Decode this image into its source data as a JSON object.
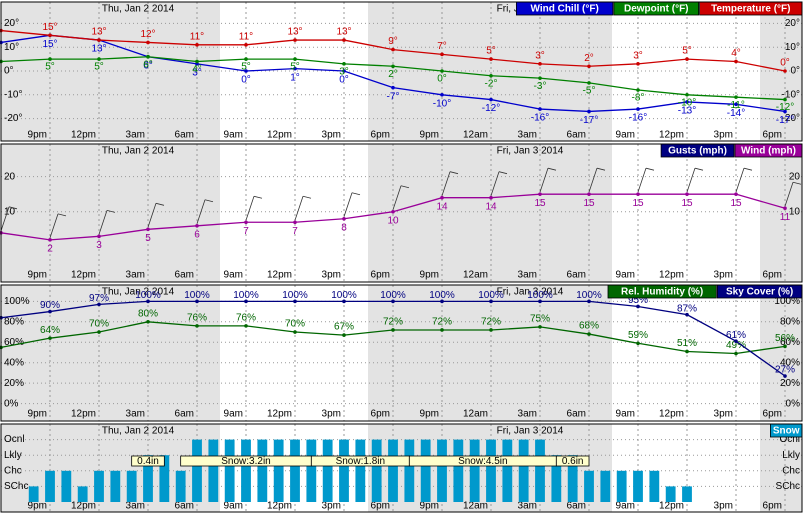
{
  "chart_data": [
    {
      "type": "line",
      "xlim": [
        0,
        48
      ],
      "xticks": [
        {
          "value": 3,
          "label": "9pm"
        },
        {
          "value": 6,
          "label": "12pm"
        },
        {
          "value": 9,
          "label": "3am"
        },
        {
          "value": 12,
          "label": "6am"
        },
        {
          "value": 15,
          "label": "9am"
        },
        {
          "value": 18,
          "label": "12pm"
        },
        {
          "value": 21,
          "label": "3pm"
        },
        {
          "value": 24,
          "label": "6pm"
        },
        {
          "value": 27,
          "label": "9pm"
        },
        {
          "value": 30,
          "label": "12am"
        },
        {
          "value": 33,
          "label": "3am"
        },
        {
          "value": 36,
          "label": "6am"
        },
        {
          "value": 39,
          "label": "9am"
        },
        {
          "value": 42,
          "label": "12pm"
        },
        {
          "value": 45,
          "label": "3pm"
        },
        {
          "value": 48,
          "label": "6pm"
        }
      ],
      "dates": [
        "Thu, Jan 2 2014",
        "Fri, Jan 3 2014"
      ],
      "ylim": [
        -29,
        29
      ],
      "yticks": [
        {
          "value": 20,
          "label": "20°"
        },
        {
          "value": 10,
          "label": "10°"
        },
        {
          "value": 0,
          "label": "0°"
        },
        {
          "value": -10,
          "label": "-10°"
        },
        {
          "value": -20,
          "label": "-20°"
        }
      ],
      "grid": true,
      "x": [
        0,
        3,
        6,
        9,
        12,
        15,
        18,
        21,
        24,
        27,
        30,
        33,
        36,
        39,
        42,
        45,
        48
      ],
      "series": [
        {
          "name": "Wind Chill (°F)",
          "color": "#0000cc",
          "values": [
            12,
            15,
            13,
            6,
            3,
            0,
            1,
            0,
            -7,
            -10,
            -12,
            -16,
            -17,
            -16,
            -13,
            -14,
            -17
          ],
          "value_labels": [
            null,
            "15°",
            "13°",
            "6°",
            "3°",
            "0°",
            "1°",
            "0°",
            "-7°",
            "-10°",
            "-12°",
            "-16°",
            "-17°",
            "-16°",
            "-13°",
            "-14°",
            "-17°"
          ]
        },
        {
          "name": "Dewpoint (°F)",
          "color": "#008000",
          "values": [
            4,
            5,
            5,
            6,
            4,
            5,
            5,
            3,
            2,
            0,
            -2,
            -3,
            -5,
            -8,
            -10,
            -11,
            -12
          ],
          "value_labels": [
            null,
            "5°",
            "5°",
            "6°",
            "4°",
            "5°",
            "5°",
            "3°",
            "2°",
            "0°",
            "-2°",
            "-3°",
            "-5°",
            "-8°",
            "-10°",
            "-11°",
            "-12°"
          ]
        },
        {
          "name": "Temperature (°F)",
          "color": "#cc0000",
          "values": [
            17,
            15,
            13,
            12,
            11,
            11,
            13,
            13,
            9,
            7,
            5,
            3,
            2,
            3,
            5,
            4,
            0
          ],
          "value_labels": [
            null,
            "15°",
            "13°",
            "12°",
            "11°",
            "11°",
            "13°",
            "13°",
            "9°",
            "7°",
            "5°",
            "3°",
            "2°",
            "3°",
            "5°",
            "4°",
            "0°"
          ]
        }
      ]
    },
    {
      "type": "line",
      "xlim": [
        0,
        48
      ],
      "xticks": [
        {
          "value": 3,
          "label": "9pm"
        },
        {
          "value": 6,
          "label": "12pm"
        },
        {
          "value": 9,
          "label": "3am"
        },
        {
          "value": 12,
          "label": "6am"
        },
        {
          "value": 15,
          "label": "9am"
        },
        {
          "value": 18,
          "label": "12pm"
        },
        {
          "value": 21,
          "label": "3pm"
        },
        {
          "value": 24,
          "label": "6pm"
        },
        {
          "value": 27,
          "label": "9pm"
        },
        {
          "value": 30,
          "label": "12am"
        },
        {
          "value": 33,
          "label": "3am"
        },
        {
          "value": 36,
          "label": "6am"
        },
        {
          "value": 39,
          "label": "9am"
        },
        {
          "value": 42,
          "label": "12pm"
        },
        {
          "value": 45,
          "label": "3pm"
        },
        {
          "value": 48,
          "label": "6pm"
        }
      ],
      "dates": [
        "Thu, Jan 2 2014",
        "Fri, Jan 3 2014"
      ],
      "ylim": [
        -10,
        29
      ],
      "yticks": [
        20,
        10
      ],
      "grid": true,
      "x": [
        0,
        3,
        6,
        9,
        12,
        15,
        18,
        21,
        24,
        27,
        30,
        33,
        36,
        39,
        42,
        45,
        48
      ],
      "series": [
        {
          "name": "Gusts (mph)",
          "color": "#000080",
          "values": [
            null,
            null,
            null,
            null,
            null,
            null,
            null,
            null,
            null,
            null,
            null,
            null,
            null,
            null,
            null,
            null,
            null
          ]
        },
        {
          "name": "Wind (mph)",
          "color": "#990099",
          "values": [
            4,
            2,
            3,
            5,
            6,
            7,
            7,
            8,
            10,
            14,
            14,
            15,
            15,
            15,
            15,
            15,
            11
          ]
        }
      ]
    },
    {
      "type": "line",
      "xlim": [
        0,
        48
      ],
      "xticks": [
        {
          "value": 3,
          "label": "9pm"
        },
        {
          "value": 6,
          "label": "12pm"
        },
        {
          "value": 9,
          "label": "3am"
        },
        {
          "value": 12,
          "label": "6am"
        },
        {
          "value": 15,
          "label": "9am"
        },
        {
          "value": 18,
          "label": "12pm"
        },
        {
          "value": 21,
          "label": "3pm"
        },
        {
          "value": 24,
          "label": "6pm"
        },
        {
          "value": 27,
          "label": "9pm"
        },
        {
          "value": 30,
          "label": "12am"
        },
        {
          "value": 33,
          "label": "3am"
        },
        {
          "value": 36,
          "label": "6am"
        },
        {
          "value": 39,
          "label": "9am"
        },
        {
          "value": 42,
          "label": "12pm"
        },
        {
          "value": 45,
          "label": "3pm"
        },
        {
          "value": 48,
          "label": "6pm"
        }
      ],
      "dates": [
        "Thu, Jan 2 2014",
        "Fri, Jan 3 2014"
      ],
      "ylim": [
        -16,
        115
      ],
      "yticks": [
        {
          "value": 100,
          "label": "100%"
        },
        {
          "value": 80,
          "label": "80%"
        },
        {
          "value": 60,
          "label": "60%"
        },
        {
          "value": 40,
          "label": "40%"
        },
        {
          "value": 20,
          "label": "20%"
        },
        {
          "value": 0,
          "label": "0%"
        }
      ],
      "grid": true,
      "x": [
        0,
        3,
        6,
        9,
        12,
        15,
        18,
        21,
        24,
        27,
        30,
        33,
        36,
        39,
        42,
        45,
        48
      ],
      "series": [
        {
          "name": "Rel. Humidity (%)",
          "color": "#006600",
          "values": [
            55,
            64,
            70,
            80,
            76,
            76,
            70,
            67,
            72,
            72,
            72,
            75,
            68,
            59,
            51,
            49,
            56
          ],
          "value_labels": [
            null,
            "64%",
            "70%",
            "80%",
            "76%",
            "76%",
            "70%",
            "67%",
            "72%",
            "72%",
            "72%",
            "75%",
            "68%",
            "59%",
            "51%",
            "49%",
            "56%"
          ]
        },
        {
          "name": "Sky Cover (%)",
          "color": "#000080",
          "values": [
            84,
            90,
            97,
            100,
            100,
            100,
            100,
            100,
            100,
            100,
            100,
            100,
            100,
            95,
            87,
            61,
            27
          ],
          "value_labels": [
            null,
            "90%",
            "97%",
            "100%",
            "100%",
            "100%",
            "100%",
            "100%",
            "100%",
            "100%",
            "100%",
            "100%",
            "100%",
            "95%",
            "87%",
            "61%",
            "27%"
          ]
        }
      ]
    },
    {
      "type": "bar",
      "xlim": [
        0,
        48
      ],
      "xticks": [
        {
          "value": 3,
          "label": "9pm"
        },
        {
          "value": 6,
          "label": "12pm"
        },
        {
          "value": 9,
          "label": "3am"
        },
        {
          "value": 12,
          "label": "6am"
        },
        {
          "value": 15,
          "label": "9am"
        },
        {
          "value": 18,
          "label": "12pm"
        },
        {
          "value": 21,
          "label": "3pm"
        },
        {
          "value": 24,
          "label": "6pm"
        },
        {
          "value": 27,
          "label": "9pm"
        },
        {
          "value": 30,
          "label": "12am"
        },
        {
          "value": 33,
          "label": "3am"
        },
        {
          "value": 36,
          "label": "6am"
        },
        {
          "value": 39,
          "label": "9am"
        },
        {
          "value": 42,
          "label": "12pm"
        },
        {
          "value": 45,
          "label": "3pm"
        },
        {
          "value": 48,
          "label": "6pm"
        }
      ],
      "dates": [
        "Thu, Jan 2 2014",
        "Fri, Jan 3 2014"
      ],
      "ylim": [
        0,
        100
      ],
      "yticks": [
        {
          "value": 80,
          "label": "Ocnl"
        },
        {
          "value": 60,
          "label": "Lkly"
        },
        {
          "value": 40,
          "label": "Chc"
        },
        {
          "value": 20,
          "label": "SChc"
        }
      ],
      "grid": true,
      "x": [
        0,
        1,
        2,
        3,
        4,
        5,
        6,
        7,
        8,
        9,
        10,
        11,
        12,
        13,
        14,
        15,
        16,
        17,
        18,
        19,
        20,
        21,
        22,
        23,
        24,
        25,
        26,
        27,
        28,
        29,
        30,
        31,
        32,
        33,
        34,
        35,
        36,
        37,
        38,
        39,
        40,
        41,
        42,
        43,
        44,
        45,
        46,
        47
      ],
      "series": [
        {
          "name": "Snow",
          "color": "#0099cc",
          "values": [
            0,
            0,
            20,
            40,
            40,
            20,
            40,
            40,
            40,
            60,
            60,
            40,
            80,
            80,
            80,
            80,
            80,
            80,
            80,
            80,
            80,
            80,
            80,
            80,
            80,
            80,
            80,
            80,
            80,
            80,
            80,
            80,
            80,
            80,
            60,
            60,
            40,
            40,
            40,
            40,
            40,
            20,
            20,
            0,
            0,
            0,
            0,
            0
          ]
        }
      ],
      "amounts": [
        "0.4in",
        "Snow:3.2in",
        "Snow:1.8in",
        "Snow:4.5in",
        "0.6in"
      ]
    }
  ]
}
